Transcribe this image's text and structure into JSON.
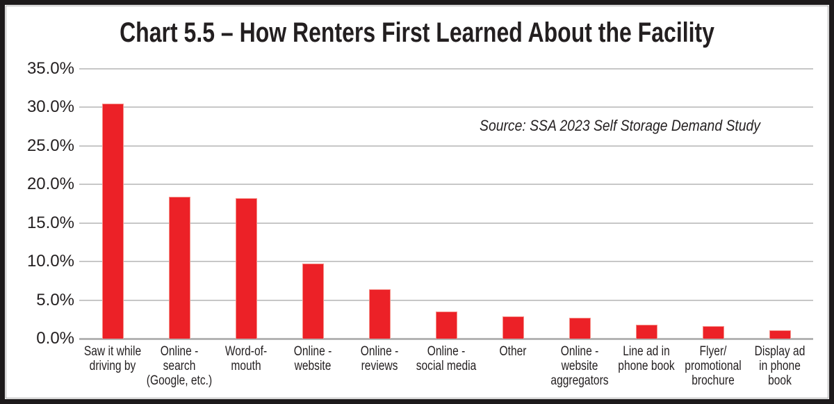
{
  "chart_data": {
    "type": "bar",
    "title": "Chart 5.5 – How Renters First Learned About the Facility",
    "annotation": "Source: SSA 2023 Self Storage Demand Study",
    "categories": [
      [
        "Saw it while",
        "driving by"
      ],
      [
        "Online -",
        "search",
        "(Google, etc.)"
      ],
      [
        "Word-of-",
        "mouth"
      ],
      [
        "Online -",
        "website"
      ],
      [
        "Online -",
        "reviews"
      ],
      [
        "Online -",
        "social media"
      ],
      [
        "Other"
      ],
      [
        "Online -",
        "website",
        "aggregators"
      ],
      [
        "Line ad in",
        "phone book"
      ],
      [
        "Flyer/",
        "promotional",
        "brochure"
      ],
      [
        "Display ad",
        "in phone",
        "book"
      ]
    ],
    "values": [
      30.5,
      18.4,
      18.2,
      9.7,
      6.4,
      3.5,
      2.9,
      2.7,
      1.8,
      1.6,
      1.1
    ],
    "xlabel": "",
    "ylabel": "",
    "ylim": [
      0,
      35
    ],
    "ytick_step": 5,
    "ytick_labels": [
      "0.0%",
      "5.0%",
      "10.0%",
      "15.0%",
      "20.0%",
      "25.0%",
      "30.0%",
      "35.0%"
    ],
    "grid": true,
    "legend": false,
    "colors": {
      "bar": "#ec2127",
      "bar_border": "#f58f88",
      "gridline": "#c7c7c7",
      "axis": "#b3b3b3",
      "text": "#231f20",
      "frame": "#1d1a1b",
      "background": "#ffffff"
    }
  }
}
